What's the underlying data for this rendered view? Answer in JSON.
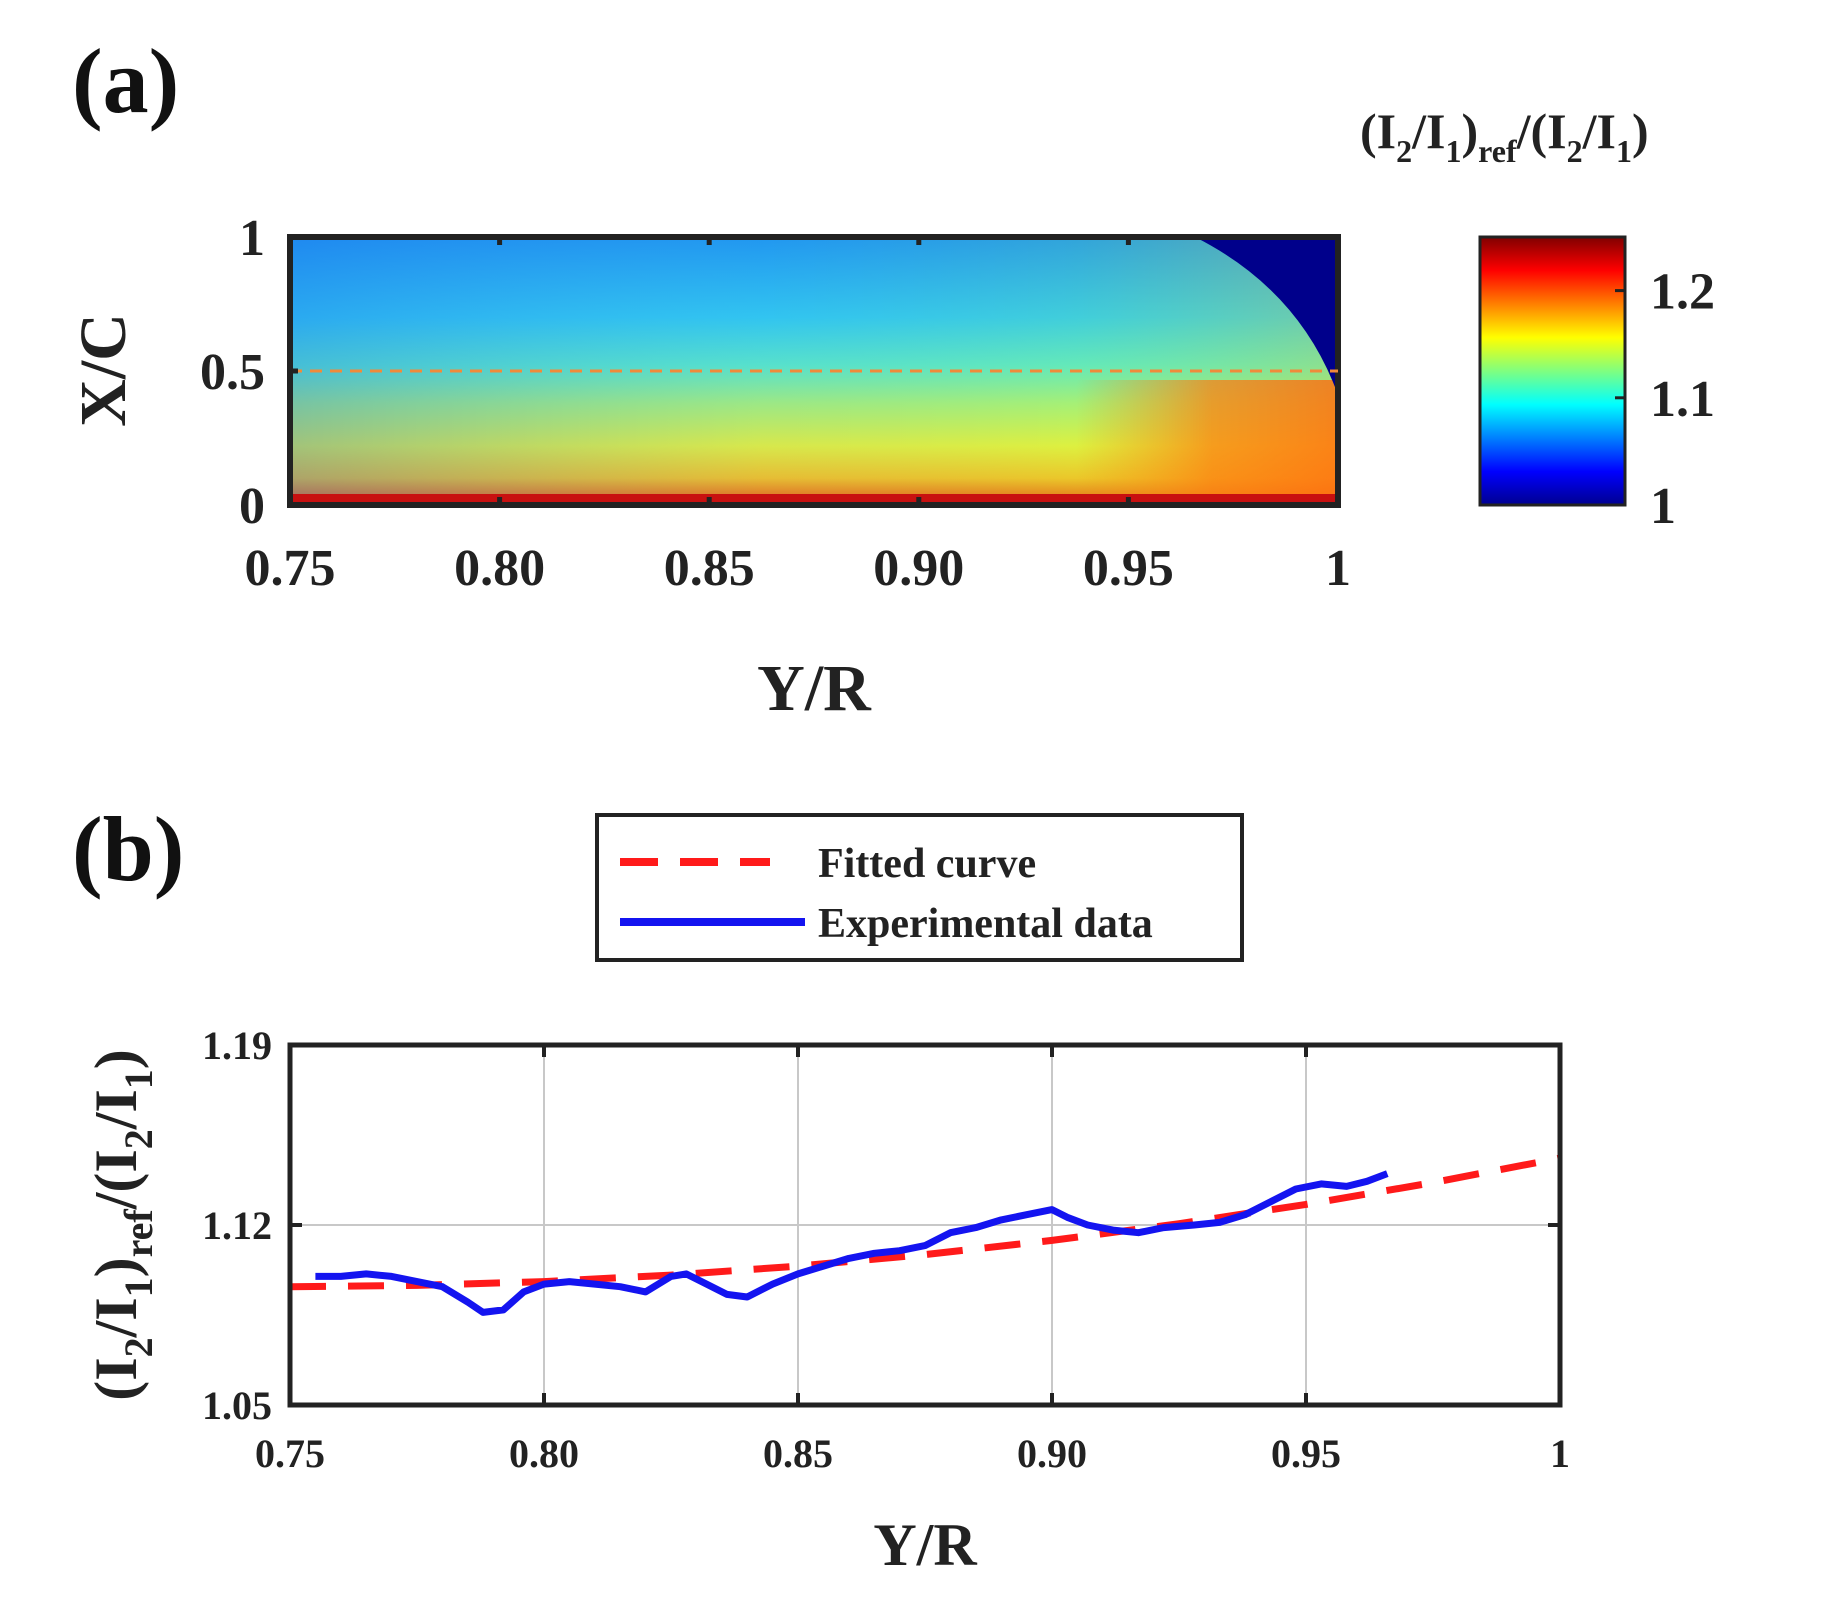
{
  "chart_data": [
    {
      "panel": "(a)",
      "type": "heatmap",
      "xlabel": "Y/R",
      "ylabel": "X/C",
      "xlim": [
        0.75,
        1.0
      ],
      "ylim": [
        0,
        1
      ],
      "xticks": [
        0.75,
        0.8,
        0.85,
        0.9,
        0.95,
        1.0
      ],
      "xtick_labels": [
        "0.75",
        "0.80",
        "0.85",
        "0.90",
        "0.95",
        "1"
      ],
      "yticks": [
        0,
        0.5,
        1
      ],
      "ytick_labels": [
        "0",
        "0.5",
        "1"
      ],
      "reference_line": {
        "axis": "y",
        "value": 0.5,
        "style": "dashed",
        "color": "#f08a3a"
      },
      "colorbar": {
        "title": "(I2/I1)ref/(I2/I1)",
        "title_parts": {
          "open1": "(I",
          "sub1": "2",
          "slash1": "/I",
          "sub2": "1",
          "close1": ")",
          "sub_ref": "ref",
          "open2": "/(I",
          "sub3": "2",
          "slash2": "/I",
          "sub4": "1",
          "close2": ")"
        },
        "range": [
          1.0,
          1.25
        ],
        "ticks": [
          1.0,
          1.1,
          1.2
        ],
        "tick_labels": [
          "1",
          "1.1",
          "1.2"
        ],
        "colormap": "jet"
      },
      "field_description": "values ~1.06 near X/C=1 increasing to ~1.18-1.22 near X/C=0; masked region (value 1) at top-right beyond Y/R≈0.97"
    },
    {
      "panel": "(b)",
      "type": "line",
      "xlabel": "Y/R",
      "ylabel": "(I2/I1)ref/(I2/I1)",
      "ylabel_parts": {
        "open1": "(I",
        "sub1": "2",
        "slash1": "/I",
        "sub2": "1",
        "close1": ")",
        "sub_ref": "ref",
        "open2": "/(I",
        "sub3": "2",
        "slash2": "/I",
        "sub4": "1",
        "close2": ")"
      },
      "xlim": [
        0.75,
        1.0
      ],
      "ylim": [
        1.05,
        1.19
      ],
      "xticks": [
        0.75,
        0.8,
        0.85,
        0.9,
        0.95,
        1.0
      ],
      "xtick_labels": [
        "0.75",
        "0.80",
        "0.85",
        "0.90",
        "0.95",
        "1"
      ],
      "yticks": [
        1.05,
        1.12,
        1.19
      ],
      "ytick_labels": [
        "1.05",
        "1.12",
        "1.19"
      ],
      "grid": true,
      "legend_position": "top-center, outside",
      "series": [
        {
          "name": "Fitted curve",
          "color": "#ff1a1a",
          "style": "dashed",
          "x": [
            0.75,
            0.775,
            0.8,
            0.825,
            0.85,
            0.875,
            0.9,
            0.925,
            0.95,
            0.975,
            1.0
          ],
          "y": [
            1.096,
            1.0965,
            1.098,
            1.1005,
            1.104,
            1.1085,
            1.114,
            1.1205,
            1.128,
            1.1365,
            1.146
          ]
        },
        {
          "name": "Experimental data",
          "color": "#1414f0",
          "style": "solid",
          "x": [
            0.755,
            0.76,
            0.765,
            0.77,
            0.775,
            0.78,
            0.785,
            0.788,
            0.792,
            0.796,
            0.8,
            0.805,
            0.81,
            0.815,
            0.82,
            0.825,
            0.828,
            0.832,
            0.836,
            0.84,
            0.845,
            0.85,
            0.855,
            0.86,
            0.865,
            0.87,
            0.875,
            0.88,
            0.885,
            0.89,
            0.895,
            0.9,
            0.903,
            0.907,
            0.912,
            0.917,
            0.922,
            0.928,
            0.933,
            0.938,
            0.943,
            0.948,
            0.953,
            0.958,
            0.962,
            0.966
          ],
          "y": [
            1.1,
            1.1,
            1.101,
            1.1,
            1.098,
            1.096,
            1.09,
            1.086,
            1.087,
            1.094,
            1.097,
            1.098,
            1.097,
            1.096,
            1.094,
            1.1,
            1.101,
            1.097,
            1.093,
            1.092,
            1.097,
            1.101,
            1.104,
            1.107,
            1.109,
            1.11,
            1.112,
            1.117,
            1.119,
            1.122,
            1.124,
            1.126,
            1.123,
            1.12,
            1.118,
            1.117,
            1.119,
            1.12,
            1.121,
            1.124,
            1.129,
            1.134,
            1.136,
            1.135,
            1.137,
            1.14
          ]
        }
      ]
    }
  ]
}
